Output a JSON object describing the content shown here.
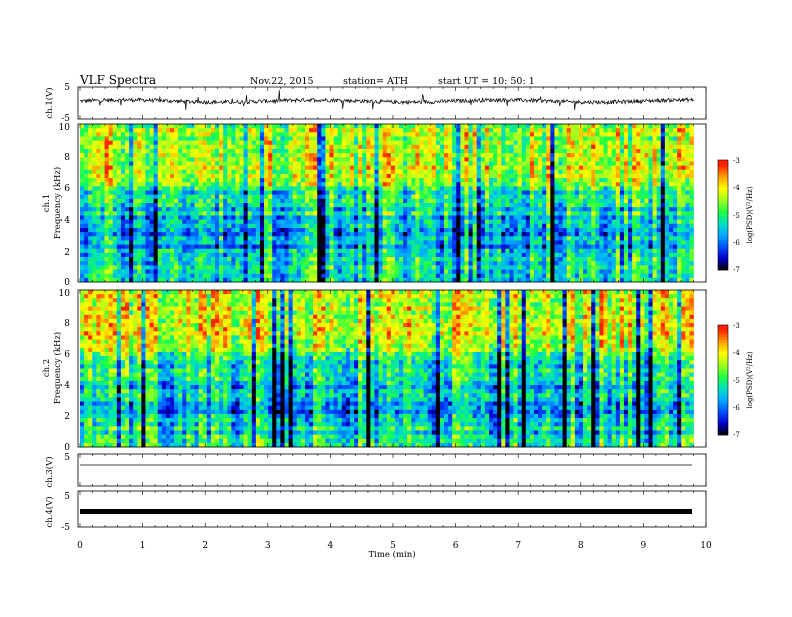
{
  "header": {
    "title": "VLF  Spectra",
    "date": "Nov.22, 2015",
    "station": "station= ATH",
    "start": "start  UT  =   10: 50: 1"
  },
  "chart_data": [
    {
      "type": "line",
      "name": "ch1-waveform",
      "ylabel": "ch.1(V)",
      "xlim": [
        0,
        10
      ],
      "ylim": [
        -5,
        5
      ],
      "yticks": [
        "5",
        "-5"
      ],
      "data_extent_min": 9.8,
      "baseline_v": 0.6,
      "noise_amplitude_v": 1.2
    },
    {
      "type": "heatmap",
      "name": "ch1-spectrogram",
      "ylabel_top": "ch.1",
      "ylabel": "Frequency  (kHz)",
      "xlim": [
        0,
        10
      ],
      "ylim": [
        0,
        10
      ],
      "yticks": [
        "0",
        "2",
        "4",
        "6",
        "8",
        "10"
      ],
      "data_extent_min": 9.8,
      "colorbar": {
        "label": "log(PSD)(V²/Hz)",
        "range": [
          -7,
          -3
        ],
        "ticks": [
          "-3",
          "-4",
          "-5",
          "-6",
          "-7"
        ]
      }
    },
    {
      "type": "heatmap",
      "name": "ch2-spectrogram",
      "ylabel_top": "ch.2",
      "ylabel": "Frequency  (kHz)",
      "xlim": [
        0,
        10
      ],
      "ylim": [
        0,
        10
      ],
      "yticks": [
        "0",
        "2",
        "4",
        "6",
        "8",
        "10"
      ],
      "data_extent_min": 9.8,
      "colorbar": {
        "label": "log(PSD)(V²/Hz)",
        "range": [
          -7,
          -3
        ],
        "ticks": [
          "-3",
          "-4",
          "-5",
          "-6",
          "-7"
        ]
      }
    },
    {
      "type": "line",
      "name": "ch3-waveform",
      "ylabel": "ch.3(V)",
      "xlim": [
        0,
        10
      ],
      "ylim": [
        -5,
        5
      ],
      "yticks": [
        "5"
      ],
      "data_extent_min": 9.8,
      "baseline_v": 0
    },
    {
      "type": "line",
      "name": "ch4-waveform",
      "ylabel": "ch.4(V)",
      "xlim": [
        0,
        10
      ],
      "ylim": [
        -5,
        5
      ],
      "yticks": [
        "5",
        "-5"
      ],
      "data_extent_min": 9.8,
      "baseline_v": 0
    }
  ],
  "xaxis": {
    "label": "Time  (min)",
    "ticks": [
      "0",
      "1",
      "2",
      "3",
      "4",
      "5",
      "6",
      "7",
      "8",
      "9",
      "10"
    ]
  },
  "colors": {
    "axes": "#000000",
    "colormap": [
      "#000000",
      "#0000cc",
      "#0050ff",
      "#00aaff",
      "#00e0c0",
      "#20ff40",
      "#a0ff20",
      "#ffff00",
      "#ffa000",
      "#ff2000",
      "#ffffff"
    ]
  }
}
